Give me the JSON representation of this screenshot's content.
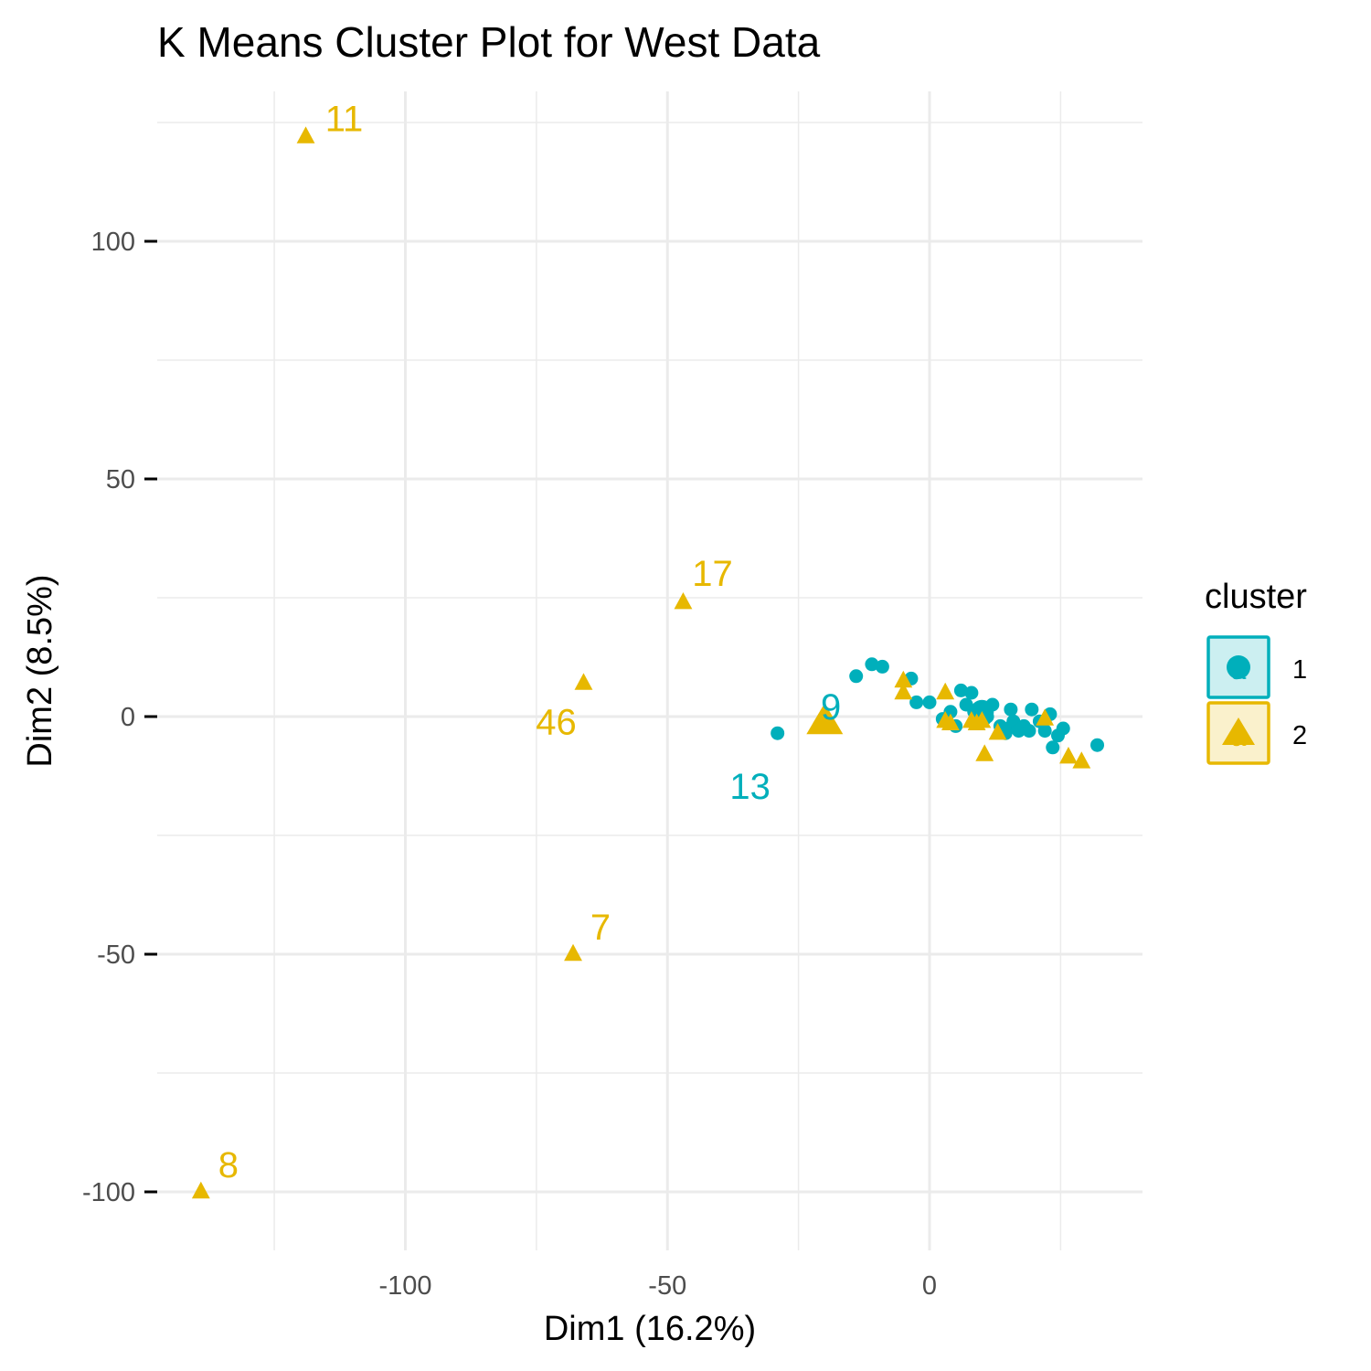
{
  "chart_data": {
    "type": "scatter",
    "title": "K Means Cluster Plot for West Data",
    "xlabel": "Dim1 (16.2%)",
    "ylabel": "Dim2 (8.5%)",
    "xlim": [
      -140,
      40
    ],
    "ylim": [
      -110,
      125
    ],
    "x_ticks": [
      -100,
      -50,
      0
    ],
    "x_tick_labels": [
      "-100",
      "-50",
      "0"
    ],
    "y_ticks": [
      -100,
      -50,
      0,
      50,
      100
    ],
    "y_tick_labels": [
      "-100",
      "-50",
      "0",
      "50",
      "100"
    ],
    "grid": true,
    "legend": {
      "title": "cluster",
      "position": "right",
      "labels": [
        "1",
        "2"
      ]
    },
    "colors": {
      "1": "#00AFBB",
      "2": "#E7B800"
    },
    "series": [
      {
        "name": "1",
        "shape": "circle",
        "points": [
          [
            -29,
            -3.5
          ],
          [
            -14,
            8.5
          ],
          [
            -11,
            11
          ],
          [
            -9,
            10.5
          ],
          [
            -3.5,
            8
          ],
          [
            -2.5,
            3
          ],
          [
            0,
            3
          ],
          [
            2.5,
            -0.5
          ],
          [
            4,
            1
          ],
          [
            5,
            -2
          ],
          [
            6,
            5.5
          ],
          [
            7,
            2.5
          ],
          [
            8,
            5
          ],
          [
            8.5,
            1
          ],
          [
            9,
            0
          ],
          [
            9.5,
            0.5
          ],
          [
            10,
            1
          ],
          [
            10.5,
            -0.5
          ],
          [
            11,
            0
          ],
          [
            12,
            2.5
          ],
          [
            13.5,
            -2
          ],
          [
            14.5,
            -3.5
          ],
          [
            15,
            -2.5
          ],
          [
            15.5,
            1.5
          ],
          [
            16,
            -1
          ],
          [
            17,
            -3
          ],
          [
            18,
            -2
          ],
          [
            19,
            -3
          ],
          [
            19.5,
            1.5
          ],
          [
            21,
            -1
          ],
          [
            22,
            -3
          ],
          [
            23,
            0.5
          ],
          [
            23.5,
            -6.5
          ],
          [
            24.5,
            -4
          ],
          [
            25.5,
            -2.5
          ],
          [
            32,
            -6
          ]
        ],
        "centroid": [
          10,
          1
        ]
      },
      {
        "name": "2",
        "shape": "triangle",
        "points": [
          [
            -119,
            122
          ],
          [
            -139,
            -100
          ],
          [
            -47,
            24
          ],
          [
            -66,
            7
          ],
          [
            -68,
            -50
          ],
          [
            -5,
            7.5
          ],
          [
            -5,
            5
          ],
          [
            3,
            5
          ],
          [
            3,
            -1
          ],
          [
            4,
            -1.5
          ],
          [
            8,
            -1
          ],
          [
            9,
            -1.5
          ],
          [
            10,
            -1
          ],
          [
            10.5,
            -8
          ],
          [
            13,
            -3.5
          ],
          [
            22,
            -0.5
          ],
          [
            26.5,
            -8.5
          ],
          [
            29,
            -9.5
          ]
        ],
        "centroid": [
          -20,
          -1
        ]
      }
    ],
    "point_labels": [
      {
        "text": "11",
        "x": -119,
        "y": 122,
        "series": "2"
      },
      {
        "text": "17",
        "x": -47,
        "y": 24,
        "series": "2"
      },
      {
        "text": "46",
        "x": -66,
        "y": 7,
        "series": "2"
      },
      {
        "text": "7",
        "x": -68,
        "y": -50,
        "series": "2"
      },
      {
        "text": "8",
        "x": -139,
        "y": -100,
        "series": "2"
      },
      {
        "text": "9",
        "x": -19.5,
        "y": 1,
        "series": "1"
      },
      {
        "text": "13",
        "x": -29,
        "y": -3.5,
        "series": "1"
      }
    ]
  }
}
